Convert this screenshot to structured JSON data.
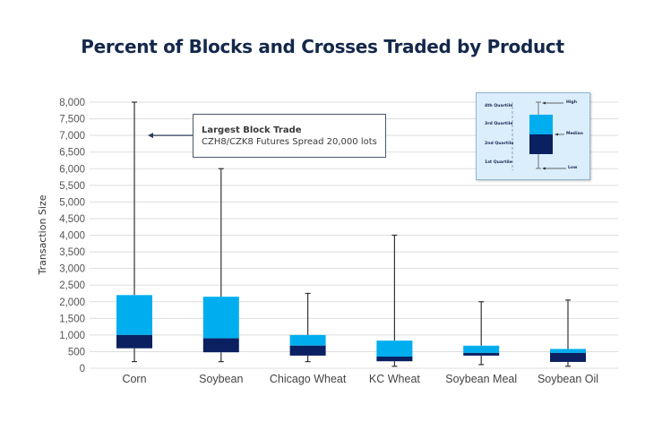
{
  "chart_data": {
    "type": "boxplot",
    "title": "Percent of Blocks and Crosses Traded by Product",
    "xlabel": "",
    "ylabel": "Transaction Size",
    "ylim": [
      0,
      8000
    ],
    "yticks": [
      0,
      500,
      1000,
      1500,
      2000,
      2500,
      3000,
      3500,
      4000,
      4500,
      5000,
      5500,
      6000,
      6500,
      7000,
      7500,
      8000
    ],
    "ytick_labels": [
      "0",
      "500",
      "1,000",
      "1,500",
      "2,000",
      "2,500",
      "3,000",
      "3,500",
      "4,000",
      "4,500",
      "5,000",
      "5,500",
      "6,000",
      "6,500",
      "7,000",
      "7,500",
      "8,000"
    ],
    "grid": true,
    "categories": [
      "Corn",
      "Soybean",
      "Chicago Wheat",
      "KC Wheat",
      "Soybean Meal",
      "Soybean Oil"
    ],
    "series": [
      {
        "name": "Corn",
        "low": 200,
        "q1": 600,
        "median": 1000,
        "q3": 2200,
        "high": 8000
      },
      {
        "name": "Soybean",
        "low": 200,
        "q1": 480,
        "median": 900,
        "q3": 2150,
        "high": 6000
      },
      {
        "name": "Chicago Wheat",
        "low": 200,
        "q1": 380,
        "median": 680,
        "q3": 1000,
        "high": 2250
      },
      {
        "name": "KC Wheat",
        "low": 60,
        "q1": 210,
        "median": 350,
        "q3": 830,
        "high": 4000
      },
      {
        "name": "Soybean Meal",
        "low": 110,
        "q1": 380,
        "median": 460,
        "q3": 680,
        "high": 2000
      },
      {
        "name": "Soybean Oil",
        "low": 60,
        "q1": 190,
        "median": 460,
        "q3": 580,
        "high": 2050
      }
    ],
    "colors": {
      "upper_box": "#00aeef",
      "lower_box": "#0b2060",
      "whisker": "#333333",
      "grid": "#dddddd"
    },
    "annotation": {
      "title": "Largest Block Trade",
      "text": "CZH8/CZK8 Futures Spread 20,000 lots",
      "points_to_value": 7000,
      "category": "Corn"
    },
    "legend": {
      "placement": "top-right",
      "quartile_labels": [
        "4th Quartile",
        "3rd Quartile",
        "2nd Quartile",
        "1st Quartile"
      ],
      "marker_labels": [
        "High",
        "Median",
        "Low"
      ]
    }
  }
}
